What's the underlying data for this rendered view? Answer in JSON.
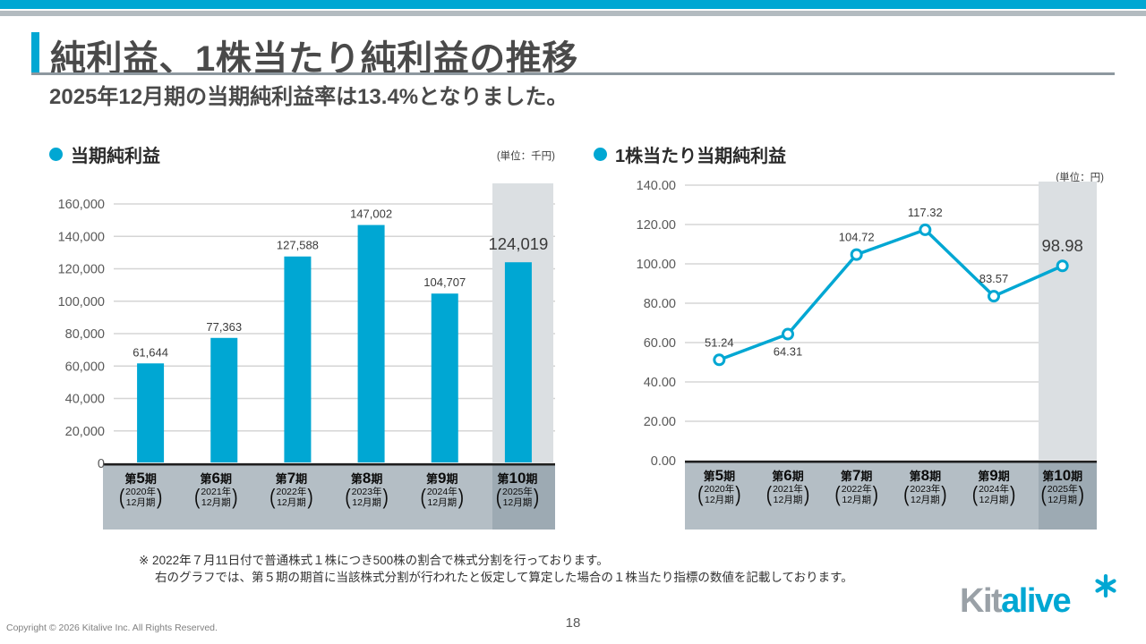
{
  "page": {
    "title": "純利益、1株当たり純利益の推移",
    "subtitle": "2025年12月期の当期純利益率は13.4%となりました。",
    "note": {
      "line1": "※ 2022年７月11日付で普通株式１株につき500株の割合で株式分割を行っております。",
      "line2": "右のグラフでは、第５期の期首に当該株式分割が行われたと仮定して算定した場合の１株当たり指標の数値を記載しております。"
    },
    "footer": {
      "copyright": "Copyright © 2026 Kitalive Inc. All Rights Reserved.",
      "page_number": "18"
    },
    "logo": {
      "text_gray": "Kit",
      "text_cyan": "alive"
    }
  },
  "colors": {
    "accent_cyan": "#00a7d3",
    "gridline": "#d5d5d5",
    "axis_line": "#1f1f1f",
    "plot_band": "#dbdfe2",
    "strip_bg": "#b4bec5",
    "strip_dark": "#9daab3",
    "tick_text": "#595959",
    "value_text": "#3a3a3a"
  },
  "chart_data": [
    {
      "type": "bar",
      "title": "当期純利益",
      "unit_label": "(単位：千円)",
      "categories": [
        "第5期",
        "第6期",
        "第7期",
        "第8期",
        "第9期",
        "第10期"
      ],
      "category_details": [
        [
          "2020年",
          "12月期"
        ],
        [
          "2021年",
          "12月期"
        ],
        [
          "2022年",
          "12月期"
        ],
        [
          "2023年",
          "12月期"
        ],
        [
          "2024年",
          "12月期"
        ],
        [
          "2025年",
          "12月期"
        ]
      ],
      "values": [
        61644,
        77363,
        127588,
        147002,
        104707,
        124019
      ],
      "value_labels": [
        "61,644",
        "77,363",
        "127,588",
        "147,002",
        "104,707",
        "124,019"
      ],
      "ylim": [
        0,
        160000
      ],
      "ytick_step": 20000,
      "ytick_labels": [
        "0",
        "20,000",
        "40,000",
        "60,000",
        "80,000",
        "100,000",
        "120,000",
        "140,000",
        "160,000"
      ],
      "grid": true,
      "highlight_last_column": true,
      "emphasize_last_label": true,
      "bar_color": "#00a7d3"
    },
    {
      "type": "line",
      "title": "1株当たり当期純利益",
      "unit_label": "(単位：円)",
      "categories": [
        "第5期",
        "第6期",
        "第7期",
        "第8期",
        "第9期",
        "第10期"
      ],
      "category_details": [
        [
          "2020年",
          "12月期"
        ],
        [
          "2021年",
          "12月期"
        ],
        [
          "2022年",
          "12月期"
        ],
        [
          "2023年",
          "12月期"
        ],
        [
          "2024年",
          "12月期"
        ],
        [
          "2025年",
          "12月期"
        ]
      ],
      "values": [
        51.24,
        64.31,
        104.72,
        117.32,
        83.57,
        98.98
      ],
      "value_labels": [
        "51.24",
        "64.31",
        "104.72",
        "117.32",
        "83.57",
        "98.98"
      ],
      "label_positions": [
        "above",
        "below",
        "above",
        "above",
        "above",
        "above"
      ],
      "ylim": [
        0,
        140
      ],
      "ytick_step": 20,
      "ytick_labels": [
        "0.00",
        "20.00",
        "40.00",
        "60.00",
        "80.00",
        "100.00",
        "120.00",
        "140.00"
      ],
      "grid": true,
      "highlight_last_column": true,
      "emphasize_last_label": true,
      "line_color": "#00a7d3",
      "marker": "open-circle"
    }
  ]
}
